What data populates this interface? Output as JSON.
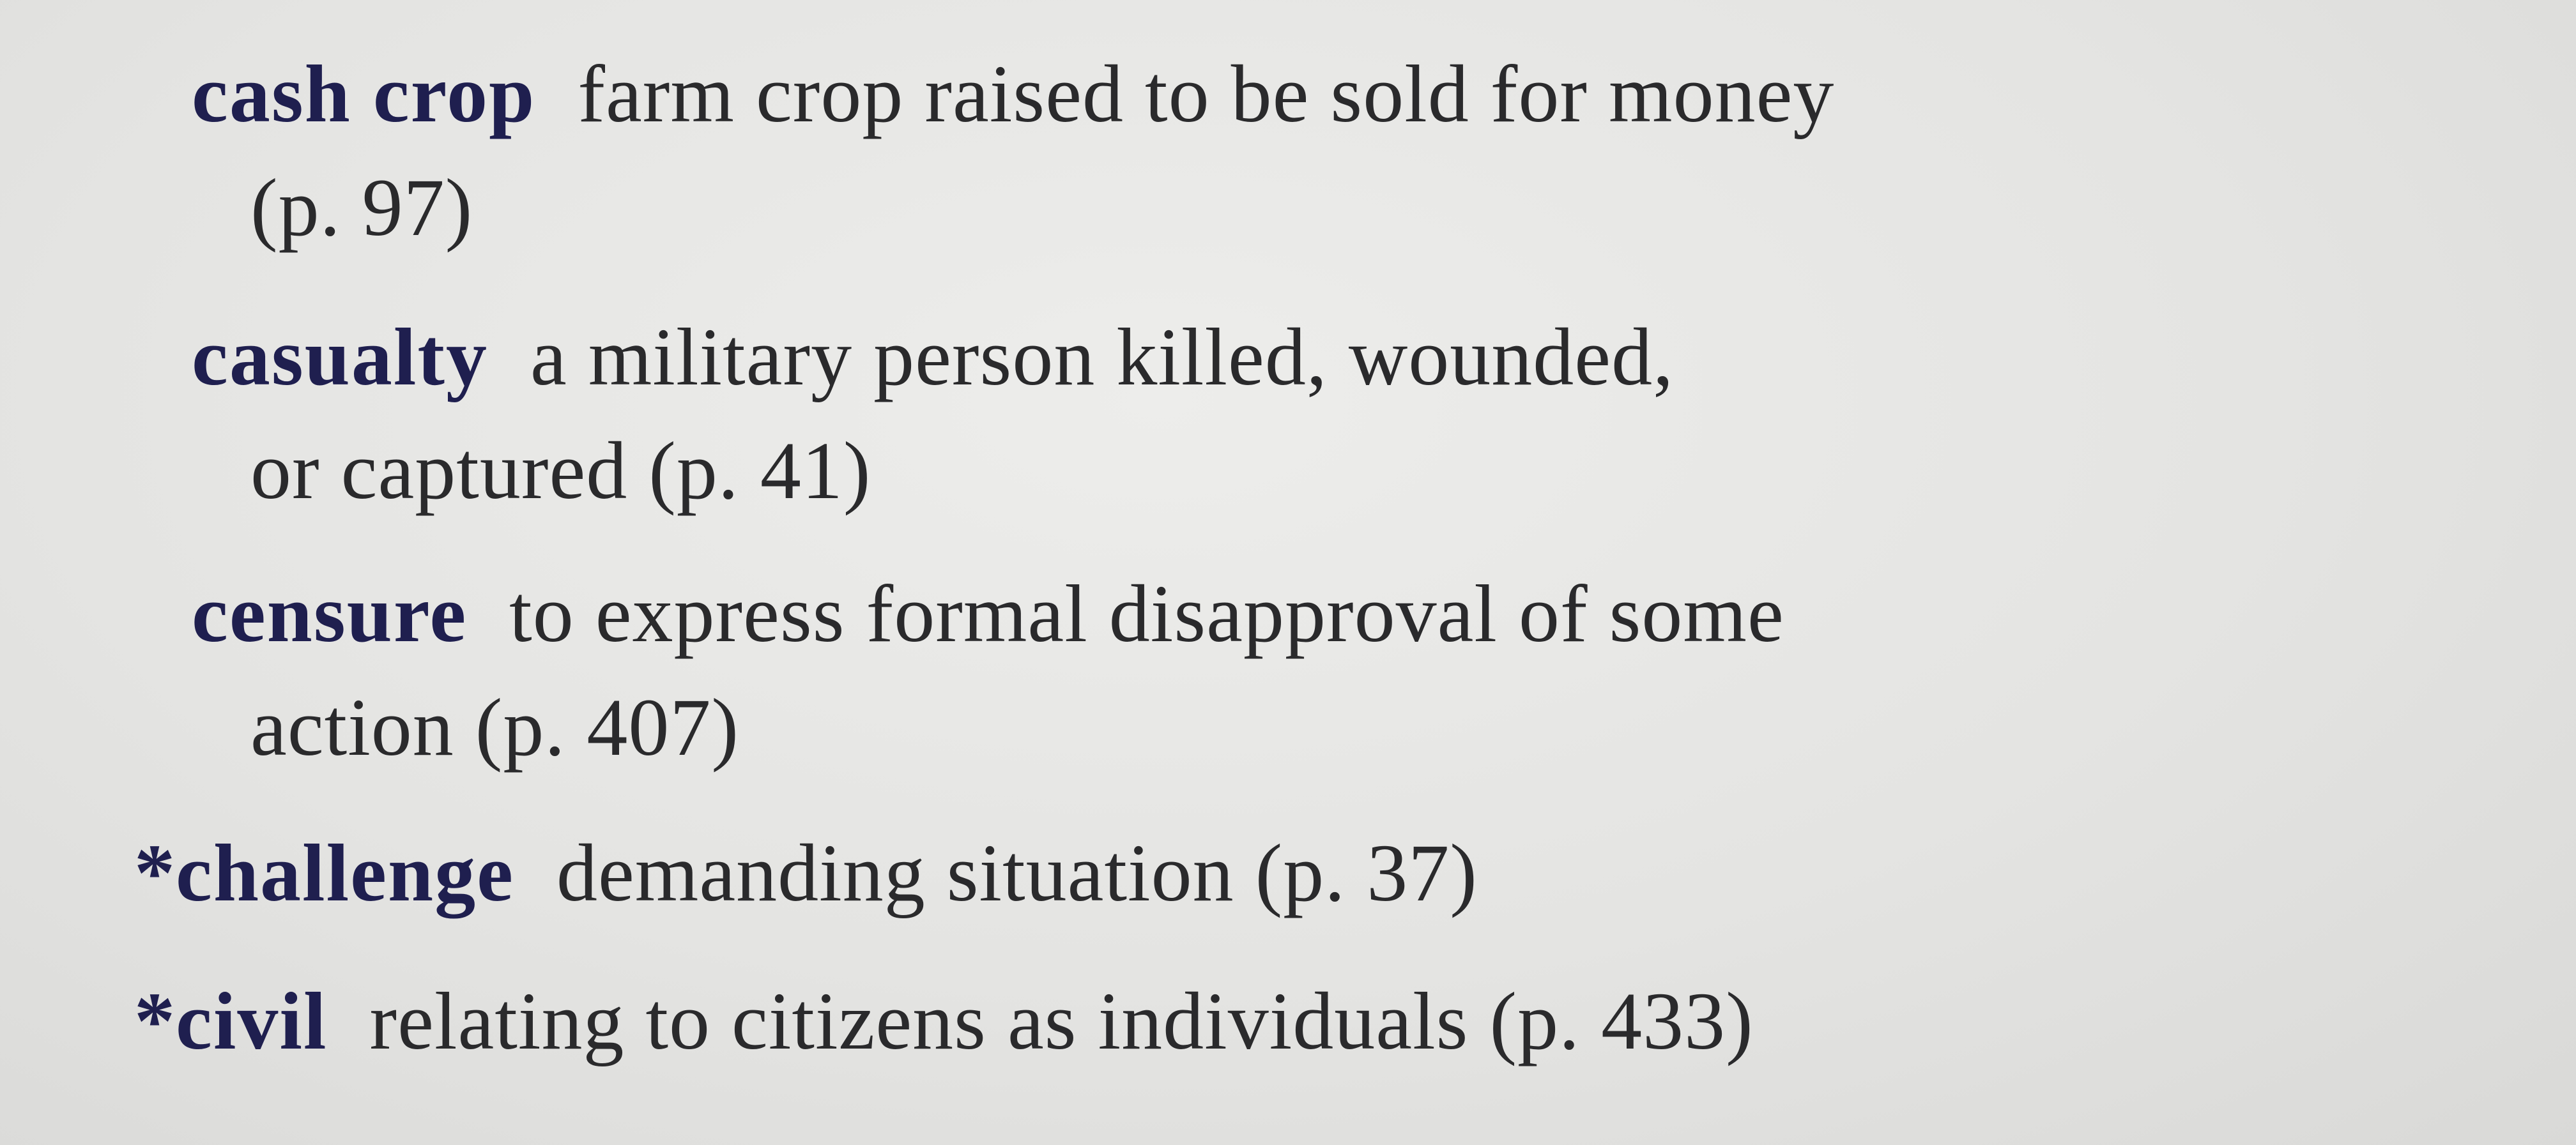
{
  "entries": [
    {
      "star": "",
      "term": "cash crop",
      "definition": "farm crop raised to be sold for money",
      "continuation": "(p. 97)"
    },
    {
      "star": "",
      "term": "casualty",
      "definition": "a military person killed, wounded,",
      "continuation": "or captured (p. 41)"
    },
    {
      "star": "",
      "term": "censure",
      "definition": "to express formal disapproval of some",
      "continuation": "action (p. 407)"
    },
    {
      "star": "*",
      "term": "challenge",
      "definition": "demanding situation (p. 37)",
      "continuation": ""
    },
    {
      "star": "*",
      "term": "civil",
      "definition": "relating to citizens as individuals (p. 433)",
      "continuation": ""
    }
  ],
  "colors": {
    "term": "#1f1f4f",
    "body_text": "#2a2a2c",
    "paper": "#e6e6e4"
  }
}
